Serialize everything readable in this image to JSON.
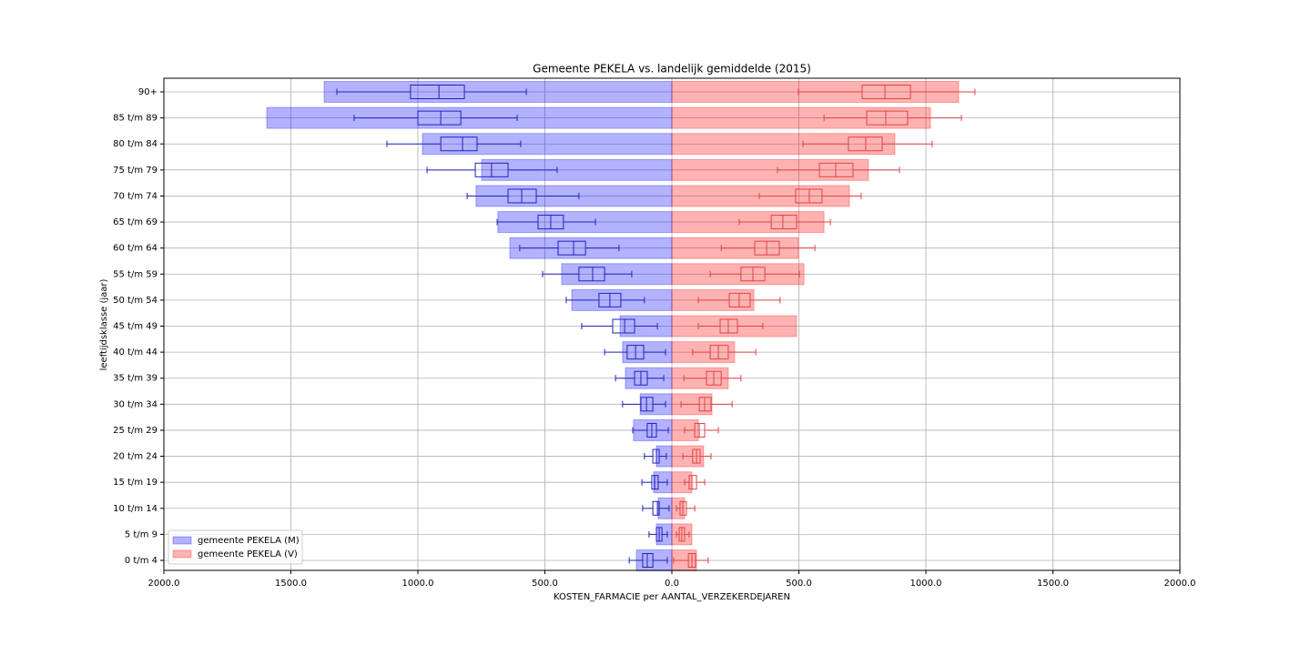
{
  "chart_data": {
    "type": "pyramid-box",
    "orientation": "horizontal",
    "title": "Gemeente PEKELA vs. landelijk gemiddelde (2015)",
    "xlabel": "KOSTEN_FARMACIE per AANTAL_VERZEKERDEJAREN",
    "ylabel": "leeftijdsklasse (jaar)",
    "categories": [
      "0 t/m  4",
      "5 t/m  9",
      "10 t/m 14",
      "15 t/m 19",
      "20 t/m 24",
      "25 t/m 29",
      "30 t/m 34",
      "35 t/m 39",
      "40 t/m 44",
      "45 t/m 49",
      "50 t/m 54",
      "55 t/m 59",
      "60 t/m 64",
      "65 t/m 69",
      "70 t/m 74",
      "75 t/m 79",
      "80 t/m 84",
      "85 t/m 89",
      "90+"
    ],
    "xlim": [
      -2000,
      2000
    ],
    "xticks": [
      {
        "value": -2000,
        "label": "2000.0"
      },
      {
        "value": -1500,
        "label": "1500.0"
      },
      {
        "value": -1000,
        "label": "1000.0"
      },
      {
        "value": -500,
        "label": "500.0"
      },
      {
        "value": 0,
        "label": "0.0"
      },
      {
        "value": 500,
        "label": "500.0"
      },
      {
        "value": 1000,
        "label": "1000.0"
      },
      {
        "value": 1500,
        "label": "1500.0"
      },
      {
        "value": 2000,
        "label": "2000.0"
      }
    ],
    "grid": true,
    "legend": "lower left",
    "series": [
      {
        "name": "gemeente PEKELA (M)",
        "color": "#0000ff",
        "box_color": "#2222bb",
        "values": [
          -140,
          -61,
          -54,
          -72,
          -61,
          -151,
          -125,
          -183,
          -194,
          -204,
          -394,
          -434,
          -638,
          -685,
          -771,
          -749,
          -982,
          -1595,
          -1369
        ],
        "box": {
          "whisker_low": [
            -168,
            -90,
            -115,
            -118,
            -108,
            -154,
            -194,
            -222,
            -265,
            -355,
            -416,
            -509,
            -599,
            -688,
            -806,
            -964,
            -1122,
            -1251,
            -1319
          ],
          "q1": [
            -115,
            -61,
            -75,
            -79,
            -75,
            -97,
            -122,
            -147,
            -176,
            -233,
            -287,
            -366,
            -448,
            -527,
            -645,
            -774,
            -910,
            -1000,
            -1029
          ],
          "median": [
            -97,
            -50,
            -57,
            -68,
            -61,
            -79,
            -100,
            -122,
            -143,
            -186,
            -244,
            -312,
            -387,
            -477,
            -591,
            -710,
            -824,
            -910,
            -917
          ],
          "q3": [
            -75,
            -39,
            -50,
            -54,
            -50,
            -61,
            -75,
            -97,
            -111,
            -147,
            -201,
            -265,
            -340,
            -427,
            -534,
            -645,
            -767,
            -831,
            -817
          ],
          "whisker_high": [
            -18,
            -18,
            -11,
            -18,
            -22,
            -14,
            -25,
            -32,
            -25,
            -57,
            -108,
            -158,
            -208,
            -301,
            -366,
            -452,
            -595,
            -609,
            -573
          ]
        }
      },
      {
        "name": "gemeente PEKELA (V)",
        "color": "#ff0000",
        "box_color": "#dd4444",
        "values": [
          97,
          79,
          50,
          79,
          125,
          104,
          158,
          222,
          247,
          491,
          323,
          520,
          498,
          599,
          699,
          774,
          878,
          1018,
          1129
        ],
        "box": {
          "whisker_low": [
            7,
            18,
            18,
            50,
            43,
            50,
            36,
            47,
            82,
            104,
            104,
            151,
            194,
            265,
            344,
            416,
            516,
            599,
            498
          ],
          "q1": [
            65,
            29,
            32,
            68,
            82,
            90,
            108,
            136,
            151,
            190,
            226,
            272,
            326,
            391,
            487,
            581,
            695,
            767,
            749
          ],
          "median": [
            79,
            39,
            43,
            79,
            97,
            108,
            129,
            165,
            183,
            222,
            265,
            319,
            373,
            437,
            541,
            645,
            763,
            842,
            839
          ],
          "q3": [
            93,
            50,
            57,
            97,
            111,
            129,
            154,
            194,
            222,
            258,
            308,
            366,
            423,
            491,
            591,
            713,
            828,
            928,
            939
          ],
          "whisker_high": [
            143,
            68,
            90,
            129,
            154,
            183,
            237,
            272,
            330,
            358,
            426,
            502,
            563,
            624,
            745,
            896,
            1025,
            1140,
            1193
          ]
        }
      }
    ]
  }
}
